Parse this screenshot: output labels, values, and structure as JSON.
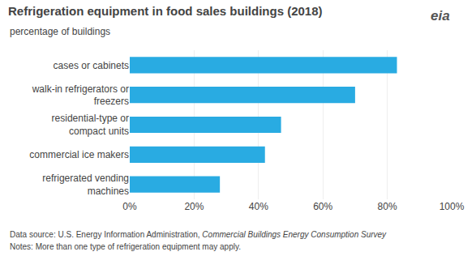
{
  "chart_data": {
    "type": "bar",
    "orientation": "horizontal",
    "title": "Refrigeration equipment in food sales buildings (2018)",
    "subtitle": "percentage of buildings",
    "categories": [
      "refrigerated vending\nmachines",
      "commercial ice makers",
      "residential-type or\ncompact units",
      "walk-in refrigerators or\nfreezers",
      "cases or cabinets"
    ],
    "values": [
      28,
      42,
      47,
      70,
      83
    ],
    "color": "#29ABE2",
    "xlim": [
      0,
      100
    ],
    "xticks": [
      {
        "value": 0,
        "label": "0%"
      },
      {
        "value": 20,
        "label": "20%"
      },
      {
        "value": 40,
        "label": "40%"
      },
      {
        "value": 60,
        "label": "60%"
      },
      {
        "value": 80,
        "label": "80%"
      },
      {
        "value": 100,
        "label": "100%"
      }
    ],
    "grid": true,
    "annotations": [
      "eia"
    ],
    "footnotes": [
      {
        "text": "Data source: U.S. Energy Information Administration,",
        "italic": "Commercial Buildings Energy Consumption Survey"
      },
      {
        "text": "Notes: More than one type of refrigeration equipment may apply."
      }
    ]
  }
}
